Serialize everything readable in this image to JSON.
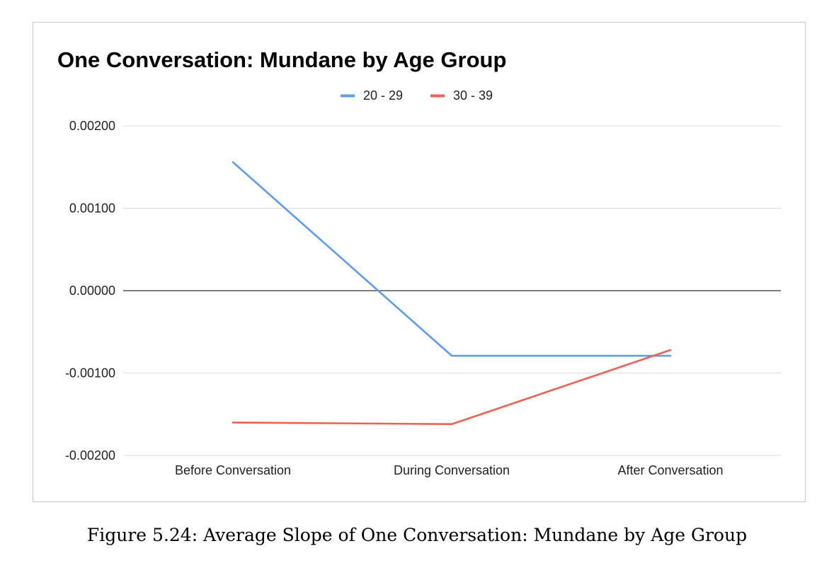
{
  "chart_data": {
    "type": "line",
    "title": "One Conversation: Mundane by Age Group",
    "categories": [
      "Before Conversation",
      "During Conversation",
      "After Conversation"
    ],
    "series": [
      {
        "name": "20 - 29",
        "color": "#5b9cf4",
        "values": [
          0.00156,
          -0.00079,
          -0.00079
        ]
      },
      {
        "name": "30 - 39",
        "color": "#ee6150",
        "values": [
          -0.0016,
          -0.00162,
          -0.00072
        ]
      }
    ],
    "ylim": [
      -0.002,
      0.002
    ],
    "yticks": [
      0.002,
      0.001,
      0.0,
      -0.001,
      -0.002
    ],
    "ytick_labels": [
      "0.00200",
      "0.00100",
      "0.00000",
      "-0.00100",
      "-0.00200"
    ],
    "legend_position": "top-center",
    "grid": true,
    "zero_line_color": "#333333",
    "grid_color": "#dddddd"
  },
  "caption": "Figure 5.24: Average Slope of One Conversation: Mundane by Age Group"
}
